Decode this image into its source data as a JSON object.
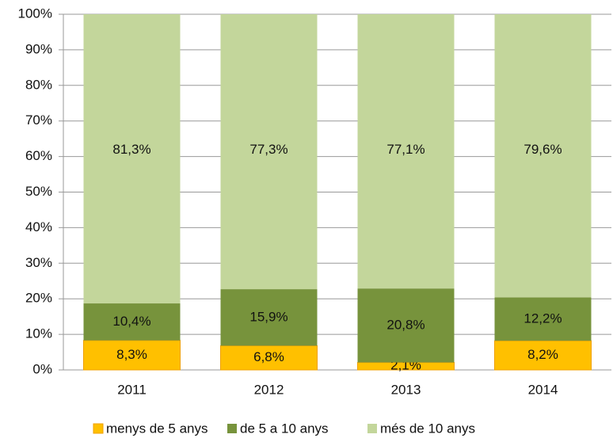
{
  "chart_data": {
    "type": "stacked_bar",
    "categories": [
      "2011",
      "2012",
      "2013",
      "2014"
    ],
    "series": [
      {
        "name": "menys de 5 anys",
        "color": "#ffc000",
        "values": [
          8.3,
          6.8,
          2.1,
          8.2
        ],
        "value_labels": [
          "8,3%",
          "6,8%",
          "2,1%",
          "8,2%"
        ]
      },
      {
        "name": "de 5 a 10 anys",
        "color": "#77933c",
        "values": [
          10.4,
          15.9,
          20.8,
          12.2
        ],
        "value_labels": [
          "10,4%",
          "15,9%",
          "20,8%",
          "12,2%"
        ]
      },
      {
        "name": "més de 10 anys",
        "color": "#c3d69b",
        "values": [
          81.3,
          77.3,
          77.1,
          79.6
        ],
        "value_labels": [
          "81,3%",
          "77,3%",
          "77,1%",
          "79,6%"
        ]
      }
    ],
    "ylim": [
      0,
      100
    ],
    "yticks": [
      {
        "value": 0,
        "label": "0%"
      },
      {
        "value": 10,
        "label": "10%"
      },
      {
        "value": 20,
        "label": "20%"
      },
      {
        "value": 30,
        "label": "30%"
      },
      {
        "value": 40,
        "label": "40%"
      },
      {
        "value": 50,
        "label": "50%"
      },
      {
        "value": 60,
        "label": "60%"
      },
      {
        "value": 70,
        "label": "70%"
      },
      {
        "value": 80,
        "label": "80%"
      },
      {
        "value": 90,
        "label": "90%"
      },
      {
        "value": 100,
        "label": "100%"
      }
    ],
    "grid": true,
    "legend": "bottom"
  }
}
